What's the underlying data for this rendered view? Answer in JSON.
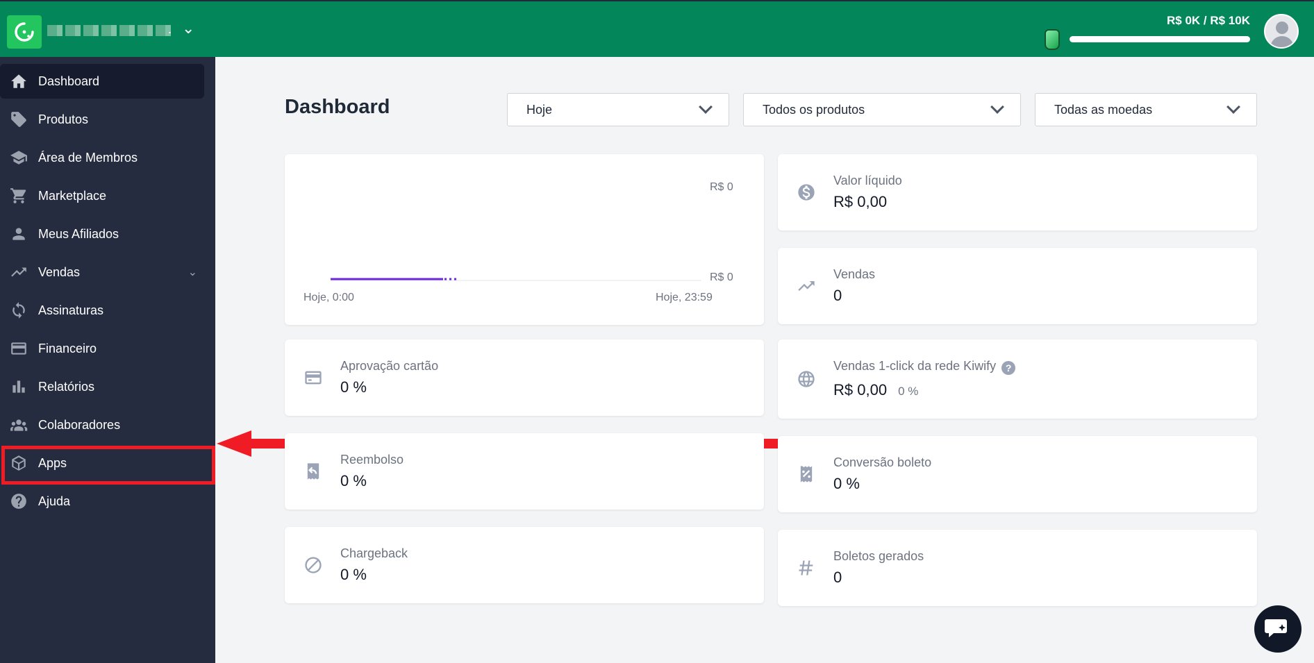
{
  "header": {
    "revenue_text": "R$ 0K / R$ 10K",
    "revenue_progress_fraction": 0.0
  },
  "sidebar": {
    "items": [
      {
        "label": "Dashboard",
        "icon": "home-icon"
      },
      {
        "label": "Produtos",
        "icon": "tag-icon"
      },
      {
        "label": "Área de Membros",
        "icon": "graduation-cap-icon"
      },
      {
        "label": "Marketplace",
        "icon": "cart-icon"
      },
      {
        "label": "Meus Afiliados",
        "icon": "user-icon"
      },
      {
        "label": "Vendas",
        "icon": "trending-up-icon"
      },
      {
        "label": "Assinaturas",
        "icon": "refresh-icon"
      },
      {
        "label": "Financeiro",
        "icon": "credit-card-icon"
      },
      {
        "label": "Relatórios",
        "icon": "bar-chart-icon"
      },
      {
        "label": "Colaboradores",
        "icon": "users-icon"
      },
      {
        "label": "Apps",
        "icon": "cube-icon"
      },
      {
        "label": "Ajuda",
        "icon": "question-icon"
      }
    ]
  },
  "main": {
    "title": "Dashboard",
    "filters": {
      "period": "Hoje",
      "products": "Todos os produtos",
      "currencies": "Todas as moedas"
    },
    "chart": {
      "y_top_label": "R$ 0",
      "y_bottom_label": "R$ 0",
      "x_start_label": "Hoje, 0:00",
      "x_end_label": "Hoje, 23:59"
    },
    "cards": {
      "valor_liquido": {
        "label": "Valor líquido",
        "value": "R$ 0,00"
      },
      "vendas": {
        "label": "Vendas",
        "value": "0"
      },
      "aprovacao": {
        "label": "Aprovação cartão",
        "value": "0 %"
      },
      "vendas_1click": {
        "label": "Vendas 1-click da rede Kiwify",
        "value": "R$ 0,00",
        "pct": "0 %",
        "help": "?"
      },
      "reembolso": {
        "label": "Reembolso",
        "value": "0 %"
      },
      "conversao_boleto": {
        "label": "Conversão boleto",
        "value": "0 %"
      },
      "chargeback": {
        "label": "Chargeback",
        "value": "0 %"
      },
      "boletos_gerados": {
        "label": "Boletos gerados",
        "value": "0"
      }
    }
  },
  "colors": {
    "topbar": "#03875a",
    "sidebar": "#262c40",
    "highlight": "#ef1c25",
    "chart_line": "#6d28d9"
  }
}
